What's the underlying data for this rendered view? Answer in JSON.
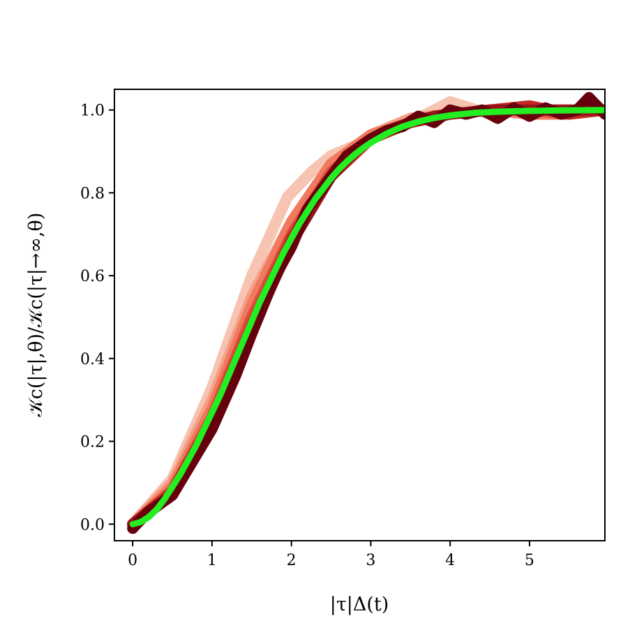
{
  "chart_data": {
    "type": "line",
    "xlabel": "|τ|Δ(t)",
    "ylabel": "𝒦c(|τ|,θ)/𝒦c(|τ|→∞,θ)",
    "xlim": [
      -0.23,
      5.95
    ],
    "ylim": [
      -0.04,
      1.05
    ],
    "x_ticks": [
      0,
      1,
      2,
      3,
      4,
      5
    ],
    "y_ticks": [
      0.0,
      0.2,
      0.4,
      0.6,
      0.8,
      1.0
    ],
    "x_tick_labels": [
      "0",
      "1",
      "2",
      "3",
      "4",
      "5"
    ],
    "y_tick_labels": [
      "0.0",
      "0.2",
      "0.4",
      "0.6",
      "0.8",
      "1.0"
    ],
    "grid": false,
    "legend": "none",
    "series": [
      {
        "color": "#f7c4b2",
        "width": 16,
        "x": [
          0,
          0.5,
          1.0,
          1.5,
          1.95,
          2.25,
          2.5,
          3.0,
          3.5,
          4.0,
          4.5,
          5.0,
          5.5,
          5.95
        ],
        "y": [
          0.0,
          0.11,
          0.33,
          0.6,
          0.79,
          0.85,
          0.89,
          0.93,
          0.97,
          1.02,
          0.99,
          1.0,
          1.0,
          1.0
        ]
      },
      {
        "color": "#f6a088",
        "width": 16,
        "x": [
          0,
          0.5,
          1.0,
          1.5,
          2.0,
          2.5,
          3.0,
          3.5,
          4.0,
          4.5,
          5.0,
          5.5,
          5.95
        ],
        "y": [
          0.0,
          0.1,
          0.3,
          0.55,
          0.73,
          0.86,
          0.94,
          0.98,
          0.99,
          1.0,
          1.0,
          1.0,
          1.0
        ]
      },
      {
        "color": "#f07a60",
        "width": 16,
        "x": [
          0,
          0.5,
          1.0,
          1.5,
          2.0,
          2.5,
          3.0,
          3.5,
          4.0,
          4.5,
          5.0,
          5.5,
          5.95
        ],
        "y": [
          0.0,
          0.09,
          0.28,
          0.53,
          0.73,
          0.87,
          0.94,
          0.97,
          0.99,
          1.0,
          0.99,
          0.99,
          1.0
        ]
      },
      {
        "color": "#e04a3a",
        "width": 16,
        "x": [
          0,
          0.5,
          1.0,
          1.5,
          2.0,
          2.5,
          3.0,
          3.5,
          4.0,
          4.5,
          5.0,
          5.5,
          5.95
        ],
        "y": [
          0.0,
          0.08,
          0.26,
          0.5,
          0.7,
          0.85,
          0.93,
          0.97,
          0.99,
          1.0,
          1.0,
          0.99,
          1.0
        ]
      },
      {
        "color": "#c42a24",
        "width": 16,
        "x": [
          0,
          0.5,
          1.0,
          1.5,
          2.0,
          2.5,
          3.0,
          3.5,
          4.0,
          4.5,
          5.0,
          5.5,
          5.95
        ],
        "y": [
          0.0,
          0.08,
          0.25,
          0.48,
          0.69,
          0.84,
          0.93,
          0.97,
          0.99,
          1.0,
          1.01,
          0.99,
          1.0
        ]
      },
      {
        "color": "#96131a",
        "width": 16,
        "x": [
          0,
          0.5,
          1.0,
          1.5,
          2.0,
          2.5,
          2.8,
          3.0,
          3.2,
          3.5,
          3.8,
          4.0,
          4.5,
          5.0,
          5.5,
          5.95
        ],
        "y": [
          0.0,
          0.07,
          0.24,
          0.47,
          0.68,
          0.84,
          0.9,
          0.93,
          0.95,
          0.97,
          0.985,
          0.99,
          1.0,
          1.0,
          1.0,
          1.0
        ]
      },
      {
        "color": "#67000d",
        "width": 16,
        "x": [
          0,
          0.1,
          0.2,
          0.5,
          1.0,
          1.3,
          1.5,
          1.8,
          2.0,
          2.2,
          2.35,
          2.5,
          2.7,
          2.85,
          3.0,
          3.2,
          3.4,
          3.6,
          3.8,
          4.0,
          4.2,
          4.4,
          4.6,
          4.8,
          5.0,
          5.2,
          5.4,
          5.6,
          5.75,
          5.95
        ],
        "y": [
          -0.01,
          0.01,
          0.03,
          0.07,
          0.23,
          0.36,
          0.46,
          0.6,
          0.67,
          0.76,
          0.8,
          0.84,
          0.89,
          0.91,
          0.93,
          0.95,
          0.96,
          0.985,
          0.97,
          1.0,
          0.99,
          1.0,
          0.98,
          1.005,
          0.985,
          1.005,
          0.99,
          1.0,
          1.03,
          0.99
        ]
      },
      {
        "color": "#22ee22",
        "width": 9,
        "x": [
          0,
          0.1,
          0.2,
          0.3,
          0.4,
          0.5,
          0.6,
          0.7,
          0.8,
          0.9,
          1.0,
          1.1,
          1.2,
          1.3,
          1.4,
          1.5,
          1.6,
          1.7,
          1.8,
          1.9,
          2.0,
          2.1,
          2.2,
          2.3,
          2.4,
          2.5,
          2.6,
          2.7,
          2.8,
          2.9,
          3.0,
          3.2,
          3.4,
          3.6,
          3.8,
          4.0,
          4.3,
          4.6,
          5.0,
          5.4,
          5.95
        ],
        "y": [
          0.0,
          0.005,
          0.017,
          0.035,
          0.06,
          0.09,
          0.12,
          0.155,
          0.19,
          0.23,
          0.27,
          0.31,
          0.355,
          0.4,
          0.445,
          0.49,
          0.535,
          0.575,
          0.615,
          0.655,
          0.69,
          0.725,
          0.755,
          0.785,
          0.81,
          0.835,
          0.857,
          0.876,
          0.893,
          0.908,
          0.921,
          0.943,
          0.96,
          0.972,
          0.981,
          0.987,
          0.993,
          0.996,
          0.998,
          0.999,
          1.0
        ]
      }
    ]
  }
}
